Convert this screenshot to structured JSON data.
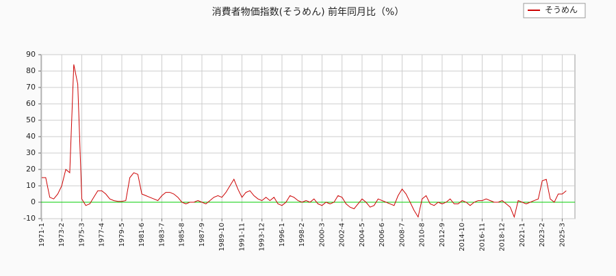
{
  "chart_data": {
    "type": "line",
    "title": "消費者物価指数(そうめん) 前年同月比（%）",
    "categories": [
      "1971-1",
      null,
      null,
      null,
      null,
      "1973-2",
      null,
      null,
      null,
      null,
      "1975-3",
      null,
      null,
      null,
      null,
      "1977-4",
      null,
      null,
      null,
      null,
      "1979-5",
      null,
      null,
      null,
      null,
      "1981-6",
      null,
      null,
      null,
      null,
      "1983-7",
      null,
      null,
      null,
      null,
      "1985-8",
      null,
      null,
      null,
      null,
      "1987-9",
      null,
      null,
      null,
      null,
      "1989-10",
      null,
      null,
      null,
      null,
      "1991-11",
      null,
      null,
      null,
      null,
      "1993-12",
      null,
      null,
      null,
      null,
      "1996-1",
      null,
      null,
      null,
      null,
      "1998-2",
      null,
      null,
      null,
      null,
      "2000-3",
      null,
      null,
      null,
      null,
      "2002-4",
      null,
      null,
      null,
      null,
      "2004-5",
      null,
      null,
      null,
      null,
      "2006-6",
      null,
      null,
      null,
      null,
      "2008-7",
      null,
      null,
      null,
      null,
      "2010-8",
      null,
      null,
      null,
      null,
      "2012-9",
      null,
      null,
      null,
      null,
      "2014-10",
      null,
      null,
      null,
      null,
      "2016-11",
      null,
      null,
      null,
      null,
      "2018-12",
      null,
      null,
      null,
      null,
      "2021-1",
      null,
      null,
      null,
      null,
      "2023-2",
      null,
      null,
      null,
      null,
      "2025-3",
      null
    ],
    "series": [
      {
        "name": "そうめん",
        "color": "#cc0000",
        "values": [
          15,
          15,
          3,
          2,
          5,
          10,
          20,
          18,
          84,
          72,
          2,
          -2,
          -1,
          3,
          7,
          7,
          5,
          2,
          1,
          0.5,
          0.5,
          1,
          15,
          18,
          17,
          5,
          4,
          3,
          2,
          1,
          4,
          6,
          6,
          5,
          3,
          0,
          -1,
          0,
          0,
          1,
          0,
          -1,
          1,
          3,
          4,
          3,
          6,
          10,
          14,
          8,
          3,
          6,
          7,
          4,
          2,
          1,
          3,
          1,
          3,
          -1,
          -2,
          0,
          4,
          3,
          1,
          0,
          1,
          0,
          2,
          -1,
          -2,
          0,
          -1,
          0,
          4,
          3,
          -1,
          -3,
          -4,
          -1,
          2,
          0,
          -3,
          -2,
          2,
          1,
          0,
          -1,
          -2,
          4,
          8,
          5,
          0,
          -5,
          -9,
          2,
          4,
          -1,
          -2,
          0,
          -1,
          0,
          2,
          -1,
          -1,
          1,
          0,
          -2,
          0,
          1,
          1,
          2,
          1,
          0,
          0,
          1,
          -1,
          -3,
          -9,
          1,
          0,
          -1,
          0,
          1,
          2,
          13,
          14,
          2,
          0,
          5,
          5,
          7
        ]
      }
    ],
    "ylim": [
      -10,
      90
    ],
    "yticks": [
      -10,
      0,
      10,
      20,
      30,
      40,
      50,
      60,
      70,
      80,
      90
    ],
    "grid": true,
    "legend": "top-right",
    "hlines": [
      {
        "value": 0,
        "color": "#00cc00"
      }
    ]
  }
}
